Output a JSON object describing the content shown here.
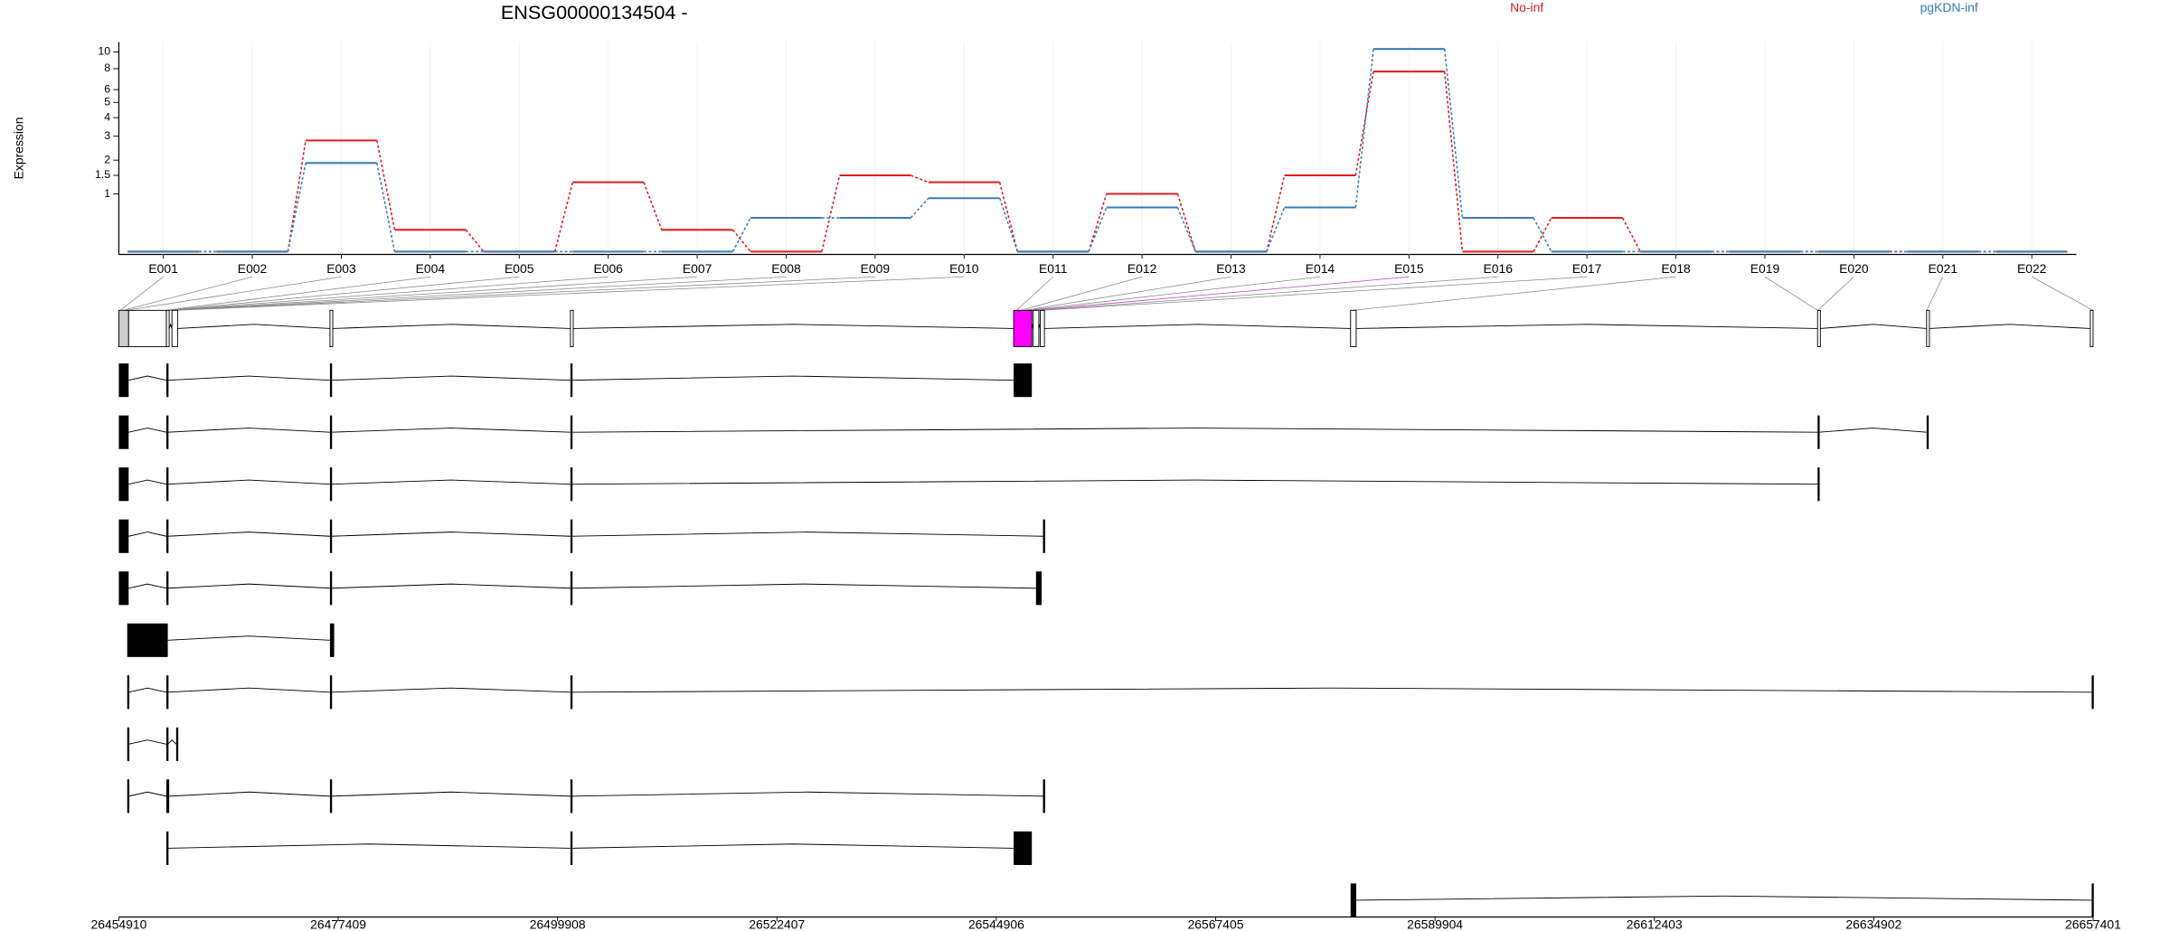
{
  "chart_data": {
    "type": "line",
    "title": "ENSG00000134504 -",
    "y_label": "Expression",
    "yscale": "log1p",
    "categories": [
      "E001",
      "E002",
      "E003",
      "E004",
      "E005",
      "E006",
      "E007",
      "E008",
      "E009",
      "E010",
      "E011",
      "E012",
      "E013",
      "E014",
      "E015",
      "E016",
      "E017",
      "E018",
      "E019",
      "E020",
      "E021",
      "E022"
    ],
    "series": [
      {
        "name": "No-inf",
        "color": "#e41a1c",
        "values": [
          0,
          0,
          2.8,
          0.3,
          0,
          1.3,
          0.3,
          0,
          1.5,
          1.3,
          0,
          1.0,
          0,
          1.5,
          7.7,
          0,
          0.5,
          0,
          0,
          0,
          0,
          0
        ]
      },
      {
        "name": "pgKDN-inf",
        "color": "#377eb8",
        "values": [
          0,
          0,
          1.9,
          0,
          0,
          0,
          0,
          0.5,
          0.5,
          0.9,
          0,
          0.7,
          0,
          0.7,
          10.4,
          0.5,
          0,
          0,
          0,
          0,
          0,
          0
        ]
      }
    ],
    "ylim": [
      0,
      11.4
    ],
    "yticks": [
      1,
      1.5,
      2,
      3,
      4,
      5,
      6,
      8,
      10
    ],
    "grid": true,
    "legend": "top"
  },
  "gene_model": {
    "xlim": [
      26454910,
      26657401
    ],
    "xticks": [
      26454910,
      26477409,
      26499908,
      26522407,
      26544906,
      26567405,
      26589904,
      26612403,
      26634902,
      26657401
    ],
    "bins": [
      {
        "start": 26454910,
        "end": 26455914,
        "color": "#cccccc"
      },
      {
        "start": 26455914,
        "end": 26459786,
        "color": "#ffffff"
      },
      {
        "start": 26459786,
        "end": 26460072,
        "color": "#ffffff"
      },
      {
        "start": 26460359,
        "end": 26460933,
        "color": "#ffffff"
      },
      {
        "start": 26476563,
        "end": 26476850,
        "color": "#ffffff"
      },
      {
        "start": 26501228,
        "end": 26501515,
        "color": "#ffffff"
      },
      {
        "start": 26546686,
        "end": 26548550,
        "color": "#ff00ff"
      },
      {
        "start": 26548694,
        "end": 26549267,
        "color": "#ffffff"
      },
      {
        "start": 26549411,
        "end": 26549841,
        "color": "#ffffff"
      },
      {
        "start": 26581245,
        "end": 26581819,
        "color": "#ffffff"
      },
      {
        "start": 26629141,
        "end": 26629428,
        "color": "#ffffff"
      },
      {
        "start": 26640326,
        "end": 26640613,
        "color": "#ffffff"
      },
      {
        "start": 26657114,
        "end": 26657401,
        "color": "#ffffff"
      }
    ],
    "transcripts": [
      [
        [
          26454910,
          26455914
        ],
        [
          26459786,
          26459929
        ],
        [
          26476563,
          26476706
        ],
        [
          26501228,
          26501372
        ],
        [
          26546686,
          26548550
        ]
      ],
      [
        [
          26454910,
          26455914
        ],
        [
          26459786,
          26459929
        ],
        [
          26476563,
          26476706
        ],
        [
          26501228,
          26501372
        ],
        [
          26629141,
          26629284
        ],
        [
          26640326,
          26640469
        ]
      ],
      [
        [
          26454910,
          26455914
        ],
        [
          26459786,
          26459929
        ],
        [
          26476563,
          26476706
        ],
        [
          26501228,
          26501372
        ],
        [
          26629141,
          26629284
        ]
      ],
      [
        [
          26454910,
          26455914
        ],
        [
          26459786,
          26459929
        ],
        [
          26476563,
          26476706
        ],
        [
          26501228,
          26501372
        ],
        [
          26549697,
          26549841
        ]
      ],
      [
        [
          26454910,
          26455914
        ],
        [
          26459786,
          26459929
        ],
        [
          26476563,
          26476706
        ],
        [
          26501228,
          26501372
        ],
        [
          26548980,
          26549554
        ]
      ],
      [
        [
          26455770,
          26459929
        ],
        [
          26476563,
          26476994
        ]
      ],
      [
        [
          26455770,
          26455914
        ],
        [
          26459786,
          26459929
        ],
        [
          26476563,
          26476706
        ],
        [
          26501228,
          26501372
        ],
        [
          26657257,
          26657401
        ]
      ],
      [
        [
          26455770,
          26455914
        ],
        [
          26459786,
          26459929
        ],
        [
          26460789,
          26460933
        ]
      ],
      [
        [
          26455770,
          26455914
        ],
        [
          26459786,
          26460072
        ],
        [
          26476563,
          26476706
        ],
        [
          26501228,
          26501372
        ],
        [
          26549697,
          26549841
        ]
      ],
      [
        [
          26459786,
          26459929
        ],
        [
          26501228,
          26501372
        ],
        [
          26546686,
          26548550
        ]
      ],
      [
        [
          26581245,
          26581819
        ],
        [
          26657257,
          26657401
        ]
      ]
    ]
  }
}
